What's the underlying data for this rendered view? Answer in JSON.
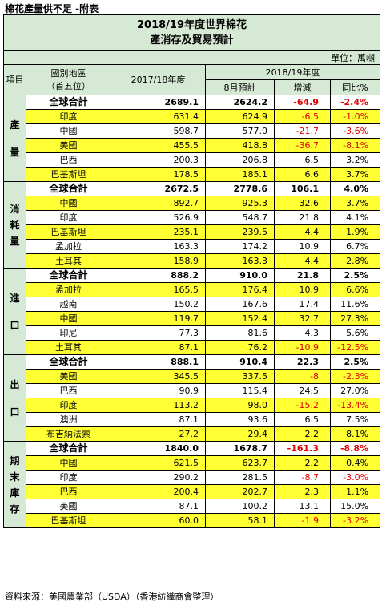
{
  "page_title": "棉花產量供不足 -附表",
  "table_title_line1": "2018/19年度世界棉花",
  "table_title_line2": "產消存及貿易預計",
  "unit": "單位：萬噸",
  "headers": {
    "item": "項目",
    "region": "國別地區",
    "region_sub": "（首五位）",
    "y2017": "2017/18年度",
    "y2018": "2018/19年度",
    "aug_forecast": "8月預計",
    "change": "增減",
    "yoy": "同比%"
  },
  "highlight_color": "#ffff33",
  "negative_color": "#e00000",
  "sections": [
    {
      "label": "產量",
      "rows": [
        {
          "name": "全球合計",
          "total": true,
          "hl": false,
          "v2017": "2689.1",
          "aug": "2624.2",
          "chg": "-64.9",
          "pct": "-2.4%"
        },
        {
          "name": "印度",
          "total": false,
          "hl": true,
          "v2017": "631.4",
          "aug": "624.9",
          "chg": "-6.5",
          "pct": "-1.0%"
        },
        {
          "name": "中國",
          "total": false,
          "hl": false,
          "v2017": "598.7",
          "aug": "577.0",
          "chg": "-21.7",
          "pct": "-3.6%"
        },
        {
          "name": "美國",
          "total": false,
          "hl": true,
          "v2017": "455.5",
          "aug": "418.8",
          "chg": "-36.7",
          "pct": "-8.1%"
        },
        {
          "name": "巴西",
          "total": false,
          "hl": false,
          "v2017": "200.3",
          "aug": "206.8",
          "chg": "6.5",
          "pct": "3.2%"
        },
        {
          "name": "巴基斯坦",
          "total": false,
          "hl": true,
          "v2017": "178.5",
          "aug": "185.1",
          "chg": "6.6",
          "pct": "3.7%"
        }
      ]
    },
    {
      "label": "消耗量",
      "rows": [
        {
          "name": "全球合計",
          "total": true,
          "hl": false,
          "v2017": "2672.5",
          "aug": "2778.6",
          "chg": "106.1",
          "pct": "4.0%"
        },
        {
          "name": "中國",
          "total": false,
          "hl": true,
          "v2017": "892.7",
          "aug": "925.3",
          "chg": "32.6",
          "pct": "3.7%"
        },
        {
          "name": "印度",
          "total": false,
          "hl": false,
          "v2017": "526.9",
          "aug": "548.7",
          "chg": "21.8",
          "pct": "4.1%"
        },
        {
          "name": "巴基斯坦",
          "total": false,
          "hl": true,
          "v2017": "235.1",
          "aug": "239.5",
          "chg": "4.4",
          "pct": "1.9%"
        },
        {
          "name": "孟加拉",
          "total": false,
          "hl": false,
          "v2017": "163.3",
          "aug": "174.2",
          "chg": "10.9",
          "pct": "6.7%"
        },
        {
          "name": "土耳其",
          "total": false,
          "hl": true,
          "v2017": "158.9",
          "aug": "163.3",
          "chg": "4.4",
          "pct": "2.8%"
        }
      ]
    },
    {
      "label": "進口",
      "rows": [
        {
          "name": "全球合計",
          "total": true,
          "hl": false,
          "v2017": "888.2",
          "aug": "910.0",
          "chg": "21.8",
          "pct": "2.5%"
        },
        {
          "name": "孟加拉",
          "total": false,
          "hl": true,
          "v2017": "165.5",
          "aug": "176.4",
          "chg": "10.9",
          "pct": "6.6%"
        },
        {
          "name": "越南",
          "total": false,
          "hl": false,
          "v2017": "150.2",
          "aug": "167.6",
          "chg": "17.4",
          "pct": "11.6%"
        },
        {
          "name": "中國",
          "total": false,
          "hl": true,
          "v2017": "119.7",
          "aug": "152.4",
          "chg": "32.7",
          "pct": "27.3%"
        },
        {
          "name": "印尼",
          "total": false,
          "hl": false,
          "v2017": "77.3",
          "aug": "81.6",
          "chg": "4.3",
          "pct": "5.6%"
        },
        {
          "name": "土耳其",
          "total": false,
          "hl": true,
          "v2017": "87.1",
          "aug": "76.2",
          "chg": "-10.9",
          "pct": "-12.5%"
        }
      ]
    },
    {
      "label": "出口",
      "rows": [
        {
          "name": "全球合計",
          "total": true,
          "hl": false,
          "v2017": "888.1",
          "aug": "910.4",
          "chg": "22.3",
          "pct": "2.5%"
        },
        {
          "name": "美國",
          "total": false,
          "hl": true,
          "v2017": "345.5",
          "aug": "337.5",
          "chg": "-8",
          "pct": "-2.3%"
        },
        {
          "name": "巴西",
          "total": false,
          "hl": false,
          "v2017": "90.9",
          "aug": "115.4",
          "chg": "24.5",
          "pct": "27.0%"
        },
        {
          "name": "印度",
          "total": false,
          "hl": true,
          "v2017": "113.2",
          "aug": "98.0",
          "chg": "-15.2",
          "pct": "-13.4%"
        },
        {
          "name": "澳洲",
          "total": false,
          "hl": false,
          "v2017": "87.1",
          "aug": "93.6",
          "chg": "6.5",
          "pct": "7.5%"
        },
        {
          "name": "布吉納法索",
          "total": false,
          "hl": true,
          "v2017": "27.2",
          "aug": "29.4",
          "chg": "2.2",
          "pct": "8.1%"
        }
      ]
    },
    {
      "label": "期末庫存",
      "rows": [
        {
          "name": "全球合計",
          "total": true,
          "hl": false,
          "v2017": "1840.0",
          "aug": "1678.7",
          "chg": "-161.3",
          "pct": "-8.8%"
        },
        {
          "name": "中國",
          "total": false,
          "hl": true,
          "v2017": "621.5",
          "aug": "623.7",
          "chg": "2.2",
          "pct": "0.4%"
        },
        {
          "name": "印度",
          "total": false,
          "hl": false,
          "v2017": "290.2",
          "aug": "281.5",
          "chg": "-8.7",
          "pct": "-3.0%"
        },
        {
          "name": "巴西",
          "total": false,
          "hl": true,
          "v2017": "200.4",
          "aug": "202.7",
          "chg": "2.3",
          "pct": "1.1%"
        },
        {
          "name": "美國",
          "total": false,
          "hl": false,
          "v2017": "87.1",
          "aug": "100.2",
          "chg": "13.1",
          "pct": "15.0%"
        },
        {
          "name": "巴基斯坦",
          "total": false,
          "hl": true,
          "v2017": "60.0",
          "aug": "58.1",
          "chg": "-1.9",
          "pct": "-3.2%"
        }
      ]
    }
  ],
  "source": "資料來源：美國農業部（USDA）（香港紡織商會整理）"
}
